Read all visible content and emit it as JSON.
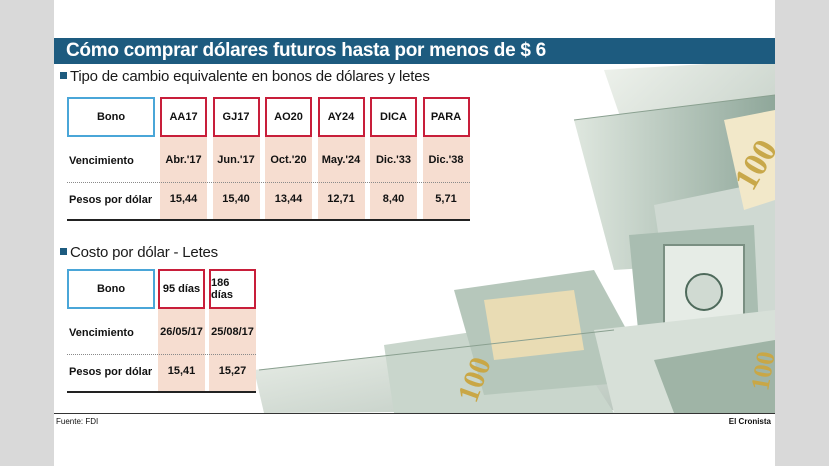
{
  "title": "Cómo comprar dólares futuros hasta por menos de $ 6",
  "section1": {
    "heading": "Tipo de cambio equivalente en bonos de dólares y letes",
    "header_label": "Bono",
    "columns": [
      "AA17",
      "GJ17",
      "AO20",
      "AY24",
      "DICA",
      "PARA"
    ],
    "rows": [
      {
        "label": "Vencimiento",
        "values": [
          "Abr.'17",
          "Jun.'17",
          "Oct.'20",
          "May.'24",
          "Dic.'33",
          "Dic.'38"
        ]
      },
      {
        "label": "Pesos por dólar",
        "values": [
          "15,44",
          "15,40",
          "13,44",
          "12,71",
          "8,40",
          "5,71"
        ]
      }
    ]
  },
  "section2": {
    "heading": "Costo por dólar - Letes",
    "header_label": "Bono",
    "columns": [
      "95 días",
      "186 días"
    ],
    "rows": [
      {
        "label": "Vencimiento",
        "values": [
          "26/05/17",
          "25/08/17"
        ]
      },
      {
        "label": "Pesos por dólar",
        "values": [
          "15,41",
          "15,27"
        ]
      }
    ]
  },
  "footer": {
    "source": "Fuente: FDI",
    "credit": "El Cronista"
  },
  "colors": {
    "title_bar": "#1d5b7f",
    "header_blue_border": "#4aa6d8",
    "header_red_border": "#c81e3a",
    "shaded_cells": "#f6ddd0"
  }
}
